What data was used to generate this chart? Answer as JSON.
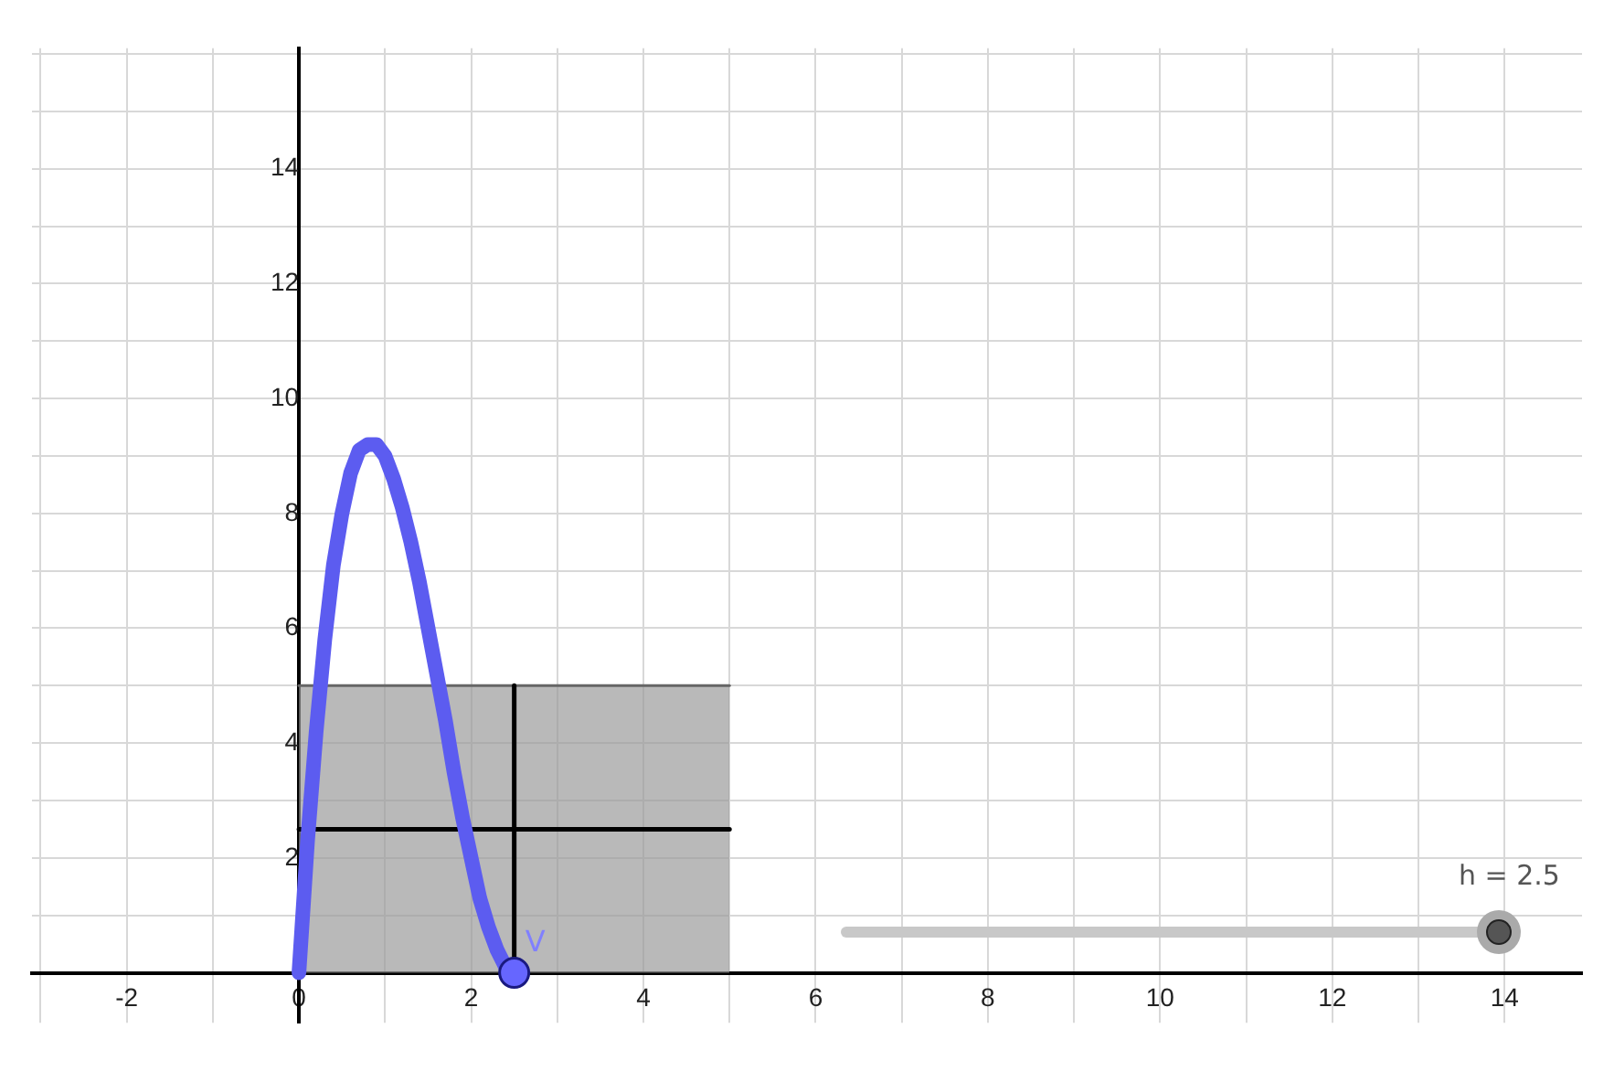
{
  "chart_data": {
    "type": "line",
    "xlim": [
      -3.1,
      14.9
    ],
    "ylim": [
      -0.87,
      16.1
    ],
    "xticks": [
      {
        "value": -3,
        "label": null
      },
      -2,
      {
        "value": -1,
        "label": null
      },
      0,
      {
        "value": 1,
        "label": null
      },
      2,
      {
        "value": 3,
        "label": null
      },
      4,
      {
        "value": 5,
        "label": null
      },
      6,
      {
        "value": 7,
        "label": null
      },
      8,
      {
        "value": 9,
        "label": null
      },
      10,
      {
        "value": 11,
        "label": null
      },
      12,
      {
        "value": 13,
        "label": null
      },
      14
    ],
    "yticks": [
      {
        "value": 1,
        "label": null
      },
      2,
      {
        "value": 3,
        "label": null
      },
      4,
      {
        "value": 5,
        "label": null
      },
      6,
      {
        "value": 7,
        "label": null
      },
      8,
      {
        "value": 9,
        "label": null
      },
      10,
      {
        "value": 11,
        "label": null
      },
      12,
      {
        "value": 13,
        "label": null
      },
      14,
      {
        "value": 15,
        "label": null
      },
      {
        "value": 16,
        "label": null
      }
    ],
    "grid": true,
    "legend": false,
    "marker": "none",
    "line_style": "solid",
    "series": [
      {
        "type": "area",
        "color": "#999999",
        "x": [
          0,
          5
        ],
        "values": [
          5,
          5
        ]
      },
      {
        "type": "line",
        "color": "#000000",
        "x": [
          2.5,
          2.5
        ],
        "values": [
          0,
          5
        ]
      },
      {
        "type": "line",
        "color": "#000000",
        "x": [
          0,
          5
        ],
        "values": [
          2.5,
          2.5
        ]
      },
      {
        "type": "line",
        "color": "#5c5cf0",
        "x": [
          0,
          0.1,
          0.2,
          0.3,
          0.4,
          0.5,
          0.6,
          0.7,
          0.8,
          0.9,
          1.0,
          1.1,
          1.2,
          1.3,
          1.4,
          1.5,
          1.6,
          1.7,
          1.8,
          1.9,
          2.0,
          2.1,
          2.2,
          2.3,
          2.4,
          2.5
        ],
        "values": [
          0,
          2.3,
          4.2,
          5.8,
          7.1,
          8.0,
          8.7,
          9.1,
          9.2,
          9.2,
          9.0,
          8.6,
          8.1,
          7.5,
          6.8,
          6.0,
          5.2,
          4.4,
          3.5,
          2.7,
          2.0,
          1.3,
          0.8,
          0.4,
          0.1,
          0
        ]
      },
      {
        "type": "scatter",
        "color": "#6666ff",
        "marker": "circle",
        "x": [
          2.5
        ],
        "values": [
          0
        ]
      }
    ],
    "annotations": [
      {
        "text": "V",
        "x": 2.5,
        "y": 0
      },
      "h = 2.5"
    ]
  }
}
